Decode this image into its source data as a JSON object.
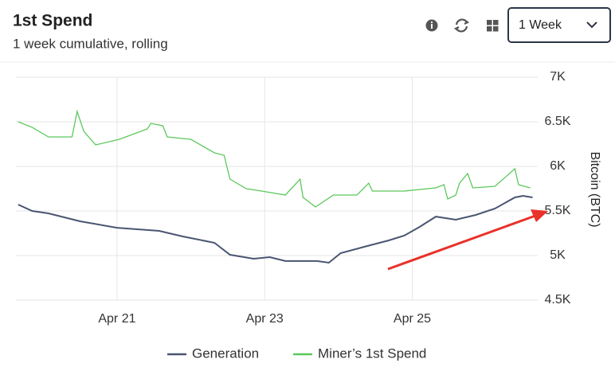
{
  "chart_data": {
    "type": "line",
    "title": "1st Spend",
    "subtitle": "1 week cumulative, rolling",
    "range_selector": "1 Week",
    "y_axis_label": "Bitcoin (BTC)",
    "xlim": [
      19.63,
      26.7
    ],
    "xticks": [
      {
        "value": 21,
        "label": "Apr 21"
      },
      {
        "value": 23,
        "label": "Apr 23"
      },
      {
        "value": 25,
        "label": "Apr 25"
      }
    ],
    "ylim": [
      4500,
      7000
    ],
    "yticks": [
      {
        "value": 4500,
        "label": "4.5K"
      },
      {
        "value": 5000,
        "label": "5K"
      },
      {
        "value": 5500,
        "label": "5.5K"
      },
      {
        "value": 6000,
        "label": "6K"
      },
      {
        "value": 6500,
        "label": "6.5K"
      },
      {
        "value": 7000,
        "label": "7K"
      }
    ],
    "grid": true,
    "series": [
      {
        "name": "Generation",
        "color": "#4a5572",
        "x": [
          19.66,
          19.85,
          20.07,
          20.5,
          21.0,
          21.57,
          21.89,
          22.32,
          22.53,
          22.85,
          23.07,
          23.28,
          23.71,
          23.87,
          24.03,
          24.35,
          24.68,
          24.89,
          25.1,
          25.32,
          25.59,
          25.86,
          26.12,
          26.39,
          26.5,
          26.63
        ],
        "values": [
          5571,
          5500,
          5473,
          5384,
          5312,
          5277,
          5214,
          5143,
          5009,
          4964,
          4982,
          4938,
          4938,
          4920,
          5027,
          5098,
          5170,
          5223,
          5321,
          5437,
          5402,
          5455,
          5527,
          5652,
          5670,
          5652
        ]
      },
      {
        "name": "Miner’s 1st Spend",
        "color": "#5cc85c",
        "x": [
          19.66,
          19.85,
          20.07,
          20.39,
          20.46,
          20.55,
          20.71,
          21.03,
          21.41,
          21.46,
          21.62,
          21.68,
          22.0,
          22.32,
          22.45,
          22.53,
          22.75,
          22.96,
          23.28,
          23.48,
          23.52,
          23.69,
          23.93,
          24.25,
          24.41,
          24.46,
          24.89,
          25.32,
          25.43,
          25.48,
          25.59,
          25.64,
          25.75,
          25.82,
          26.12,
          26.39,
          26.44,
          26.6
        ],
        "values": [
          6500,
          6438,
          6330,
          6330,
          6616,
          6393,
          6241,
          6304,
          6420,
          6482,
          6455,
          6330,
          6304,
          6152,
          6125,
          5857,
          5750,
          5723,
          5679,
          5857,
          5652,
          5545,
          5679,
          5679,
          5812,
          5723,
          5723,
          5759,
          5795,
          5634,
          5679,
          5812,
          5920,
          5759,
          5777,
          5973,
          5795,
          5759
        ]
      }
    ]
  }
}
